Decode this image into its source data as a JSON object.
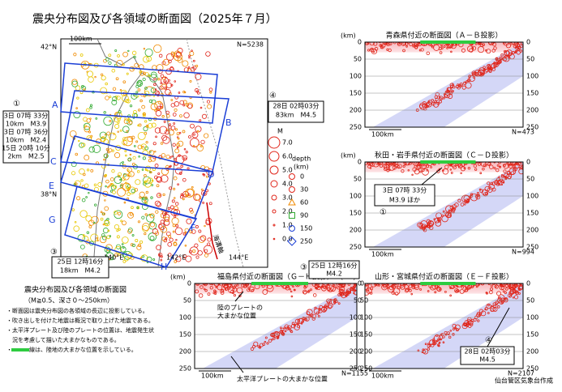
{
  "title": "震央分布図及び各領域の断面図（2025年７月）",
  "map": {
    "scale": "100km",
    "count": "N=5238",
    "lat_labels": [
      "42°N",
      "38°N"
    ],
    "lon_labels": [
      "140°E",
      "142°E",
      "144°E"
    ],
    "section_labels": [
      "A",
      "B",
      "C",
      "D",
      "E",
      "F",
      "G",
      "H"
    ],
    "trench": "海溝軸"
  },
  "legend": {
    "magnitude_title": "M",
    "magnitudes": [
      "7.0",
      "6.0",
      "5.0",
      "4.0",
      "3.0",
      "2.0",
      "1.0",
      "0.0"
    ],
    "depth_title": "depth",
    "depth_unit": "(km)",
    "depths": [
      "0",
      "30",
      "60",
      "90",
      "150",
      "250"
    ]
  },
  "callouts": [
    {
      "marker": "①",
      "lines": [
        "3日 07時 33分",
        "10km　M3.9",
        "3日 07時 36分",
        "10km　M2.4",
        "15日 20時 10分",
        "2km　M2.5"
      ]
    },
    {
      "marker": "④",
      "lines": [
        "28日 02時03分",
        "83km　M4.5"
      ]
    },
    {
      "marker": "③",
      "lines": [
        "25日 12時16分",
        "18km　M4.2"
      ]
    }
  ],
  "sections": [
    {
      "title": "青森県付近の断面図（Ａ－Ｂ投影）",
      "count": "N=473",
      "scale": "100km",
      "unit": "(km)",
      "depth_ticks": [
        0,
        50,
        100,
        150,
        200,
        250
      ]
    },
    {
      "title": "秋田・岩手県付近の断面図（Ｃ－Ｄ投影）",
      "count": "N=994",
      "scale": "100km",
      "unit": "(km)",
      "depth_ticks": [
        0,
        50,
        100,
        150,
        200,
        250
      ],
      "notes": [
        "3日 07時 33分",
        "M3.9 ほか"
      ],
      "marker": "①"
    },
    {
      "title": "福島県付近の断面図（Ｇ－Ｈ投影）",
      "count": "N=1155",
      "scale": "100km",
      "unit": "(km)",
      "depth_ticks": [
        0,
        50,
        100,
        150,
        200,
        250
      ],
      "notes": [
        "25日 12時16分",
        "M4.2"
      ],
      "marker": "③",
      "plates": [
        "陸のプレートの",
        "大まかな位置",
        "太平洋プレートの大まかな位置"
      ]
    },
    {
      "title": "山形・宮城県付近の断面図（Ｅ－Ｆ投影）",
      "count": "N=2107",
      "scale": "100km",
      "unit": "(km)",
      "depth_ticks": [
        0,
        50,
        100,
        150,
        200,
        250
      ],
      "notes": [
        "28日 02時03分",
        "M4.5"
      ],
      "marker": "④"
    }
  ],
  "description": {
    "title": "震央分布図及び各領域の断面図",
    "subtitle": "（M≧0.5、深さ０～250km）",
    "items": [
      "・断面図は震央分布図の各領域の長辺に投影している。",
      "・吹き出しを付けた地震は概況で取り上げた地震である。",
      "・太平洋プレート及び陸のプレートの位置は、地震発生状",
      "　況を考慮して描いた大まかなものである。",
      "・　　　線は、陸地の大まかな位置を示している。"
    ]
  },
  "credit": "仙台管区気象台作成"
}
